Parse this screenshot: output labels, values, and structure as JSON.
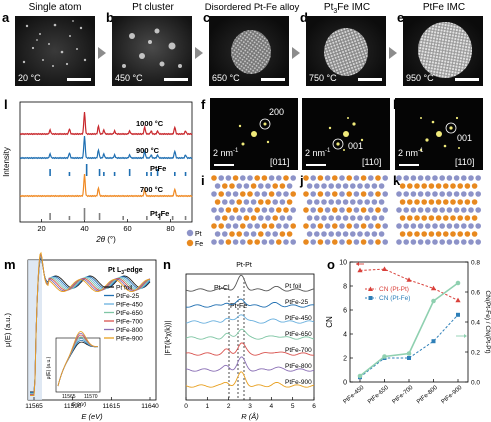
{
  "row1": {
    "panels": [
      {
        "letter": "a",
        "title": "Single atom",
        "temp": "20 °C",
        "brightness": "dots"
      },
      {
        "letter": "b",
        "title": "Pt cluster",
        "temp": "450 °C",
        "brightness": "clusters"
      },
      {
        "letter": "c",
        "title": "Disordered Pt-Fe alloy",
        "temp": "650 °C",
        "brightness": "particle"
      },
      {
        "letter": "d",
        "title": "Pt3Fe IMC",
        "title_main": "Pt",
        "title_sub": "3",
        "title_rest": "Fe IMC",
        "temp": "750 °C",
        "brightness": "particle"
      },
      {
        "letter": "e",
        "title": "PtFe IMC",
        "temp": "950 °C",
        "brightness": "particle"
      }
    ]
  },
  "xrd": {
    "letter": "l",
    "ylabel": "Intensity",
    "xlabel": "2θ (°)",
    "xlabel_main": "2",
    "xlabel_theta": "θ",
    "xlabel_unit": " (°)",
    "xticks": [
      "20",
      "40",
      "60",
      "80"
    ],
    "xrange": [
      10,
      90
    ],
    "curves": [
      {
        "label": "1000 °C",
        "color": "#c8282d"
      },
      {
        "label": "900 °C",
        "color": "#1f6fb2"
      },
      {
        "label": "700 °C",
        "color": "#f08a24"
      }
    ],
    "refs": [
      {
        "label": "PtFe",
        "color": "#1f6fb2",
        "peaks": [
          24,
          33,
          41,
          47,
          49,
          54,
          61,
          69,
          71,
          74,
          82,
          87
        ]
      },
      {
        "label": "Pt3Fe",
        "label_main": "Pt",
        "label_sub": "3",
        "label_rest": "Fe",
        "color": "#808080",
        "peaks": [
          24,
          33,
          40,
          47,
          58,
          69,
          75,
          81,
          87
        ]
      }
    ]
  },
  "fft": [
    {
      "letter": "f",
      "spot": "200",
      "zone": "[011]",
      "scale": "2 nm⁻¹",
      "scale_main": "2 nm",
      "scale_sup": "-1"
    },
    {
      "letter": "g",
      "spot": "001",
      "zone": "[110]",
      "scale": "2 nm⁻¹",
      "scale_main": "2 nm",
      "scale_sup": "-1"
    },
    {
      "letter": "h",
      "spot": "001",
      "zone": "[110]",
      "scale": "2 nm⁻¹",
      "scale_main": "2 nm",
      "scale_sup": "-1"
    }
  ],
  "models": {
    "letters": [
      "i",
      "j",
      "k"
    ],
    "legend": [
      {
        "label": "Pt",
        "color": "#8d93c8"
      },
      {
        "label": "Fe",
        "color": "#e8891f"
      }
    ]
  },
  "xanes": {
    "letter": "m",
    "edge": "Pt L3-edge",
    "edge_main": "Pt L",
    "edge_sub": "3",
    "edge_rest": "-edge",
    "ylabel": "μ(E) (a.u.)",
    "xlabel": "E (eV)",
    "xticks": [
      "11565",
      "11590",
      "11615",
      "11640"
    ],
    "inset_xticks": [
      "11565",
      "11570"
    ],
    "inset_ylabel": "μ(E) (a.u.)",
    "inset_xlabel": "E (eV)",
    "legend": [
      {
        "label": "Pt foil",
        "color": "#1a1a1a"
      },
      {
        "label": "PtFe-25",
        "color": "#1f6fb2"
      },
      {
        "label": "PtFe-450",
        "color": "#6ab0de"
      },
      {
        "label": "PtFe-650",
        "color": "#7fc6a4"
      },
      {
        "label": "PtFe-700",
        "color": "#d9534f"
      },
      {
        "label": "PtFe-800",
        "color": "#8a6fb5"
      },
      {
        "label": "PtFe-900",
        "color": "#e8a020"
      }
    ]
  },
  "exafs": {
    "letter": "n",
    "ylabel": "|FT(k³χ(k))|",
    "xlabel": "R (Å)",
    "xticks": [
      "0",
      "1",
      "2",
      "3",
      "4",
      "5",
      "6"
    ],
    "annotations": [
      "Pt-Pt",
      "Pt-Cl",
      "Pt-Fe"
    ],
    "curves": [
      {
        "label": "Pt foil",
        "color": "#555555"
      },
      {
        "label": "PtFe-25",
        "color": "#1f6fb2"
      },
      {
        "label": "PtFe-450",
        "color": "#6ab0de"
      },
      {
        "label": "PtFe-650",
        "color": "#7fc6a4"
      },
      {
        "label": "PtFe-700",
        "color": "#d9534f"
      },
      {
        "label": "PtFe-800",
        "color": "#8a6fb5"
      },
      {
        "label": "PtFe-900",
        "color": "#e8a020"
      }
    ]
  },
  "chart_data": [
    {
      "type": "line",
      "ylabel": "CN",
      "y2label": "CN(Pt-Fe) / CN(Pt-Pt)",
      "categories": [
        "PtFe-450",
        "PtFe-650",
        "PtFe-700",
        "PtFe-800",
        "PtFe-900"
      ],
      "ylim": [
        0,
        10
      ],
      "y2lim": [
        0,
        0.8
      ],
      "yticks": [
        "0",
        "2",
        "4",
        "6",
        "8",
        "10"
      ],
      "y2ticks": [
        "0.0",
        "0.2",
        "0.4",
        "0.6",
        "0.8"
      ],
      "series": [
        {
          "name": "CN (Pt-Pt)",
          "axis": "left",
          "color": "#d9403a",
          "values": [
            9.3,
            9.4,
            8.5,
            7.8,
            6.8
          ]
        },
        {
          "name": "CN (Pt-Fe)",
          "axis": "left",
          "color": "#2e7fb8",
          "values": [
            0.4,
            2.0,
            2.0,
            3.4,
            5.6
          ]
        },
        {
          "name": "CN(Pt-Fe)/CN(Pt-Pt)",
          "axis": "right",
          "color": "#8fd0b0",
          "values": [
            0.04,
            0.17,
            0.19,
            0.54,
            0.66
          ]
        }
      ]
    }
  ]
}
